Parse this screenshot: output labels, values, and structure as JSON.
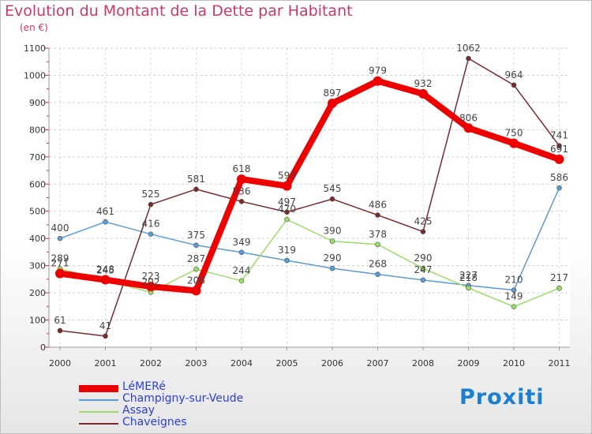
{
  "chart_data": {
    "type": "line",
    "title": "Evolution du Montant de la Dette par Habitant",
    "subtitle": "(en €)",
    "xlabel": "",
    "ylabel": "",
    "ylim": [
      0,
      1100
    ],
    "yticks": [
      0,
      100,
      200,
      300,
      400,
      500,
      600,
      700,
      800,
      900,
      1000,
      1100
    ],
    "categories": [
      "2000",
      "2001",
      "2002",
      "2003",
      "2004",
      "2005",
      "2006",
      "2007",
      "2008",
      "2009",
      "2010",
      "2011"
    ],
    "grid": true,
    "legend_position": "bottom-left",
    "series": [
      {
        "name": "LéMERé",
        "color": "#ee0000",
        "values": [
          271,
          248,
          223,
          208,
          618,
          593,
          897,
          979,
          932,
          806,
          750,
          691
        ]
      },
      {
        "name": "Champigny-sur-Veude",
        "color": "#5b9bd5",
        "values": [
          400,
          461,
          416,
          375,
          349,
          319,
          290,
          268,
          247,
          227,
          210,
          586
        ]
      },
      {
        "name": "Assay",
        "color": "#99dd66",
        "values": [
          289,
          245,
          202,
          287,
          244,
          470,
          390,
          378,
          290,
          218,
          149,
          217
        ]
      },
      {
        "name": "Chaveignes",
        "color": "#7a2a2a",
        "values": [
          61,
          41,
          525,
          581,
          536,
          497,
          545,
          486,
          425,
          1062,
          964,
          741
        ]
      }
    ]
  },
  "labels": {
    "Champigny-sur-Veude": [
      "400",
      "461",
      "416",
      "375",
      "349",
      "319",
      "290",
      "268",
      "247",
      "227",
      "210",
      "586"
    ],
    "Assay": [
      "289",
      "245",
      "202",
      "287",
      "244",
      "470",
      "390",
      "378",
      "290",
      "218",
      "149",
      "217"
    ],
    "Chaveignes": [
      "61",
      "41",
      "525",
      "581",
      "536",
      "497",
      "545",
      "486",
      "425",
      "1062",
      "964",
      "741"
    ],
    "LéMERé": [
      "271",
      "248",
      "223",
      "208",
      "618",
      "593",
      "897",
      "979",
      "932",
      "806",
      "750",
      "691"
    ]
  },
  "logo": {
    "text": "Proxiti"
  }
}
